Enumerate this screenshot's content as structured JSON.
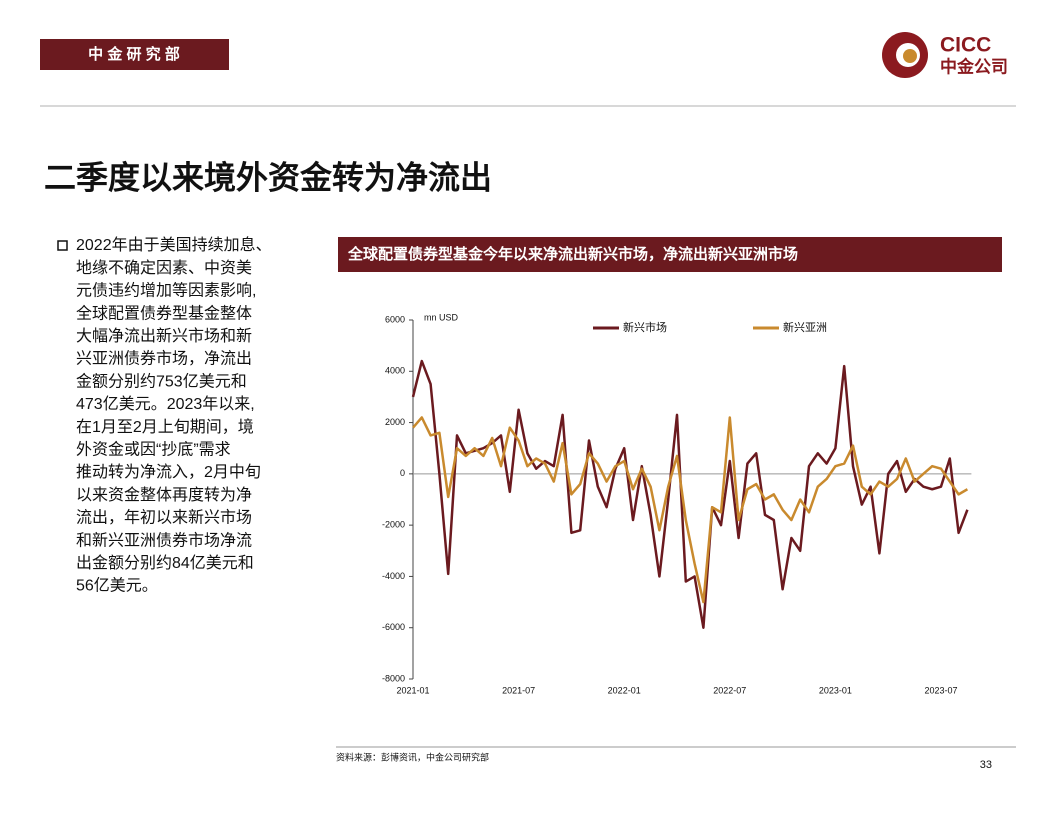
{
  "header": {
    "department": "中 金 研 究 部",
    "logo_en": "CICC",
    "logo_cn": "中金公司"
  },
  "slide_title": "二季度以来境外资金转为净流出",
  "bullet": [
    "2022年由于美国持续加息、",
    "地缘不确定因素、中资美",
    "元债违约增加等因素影响,",
    "全球配置债券型基金整体",
    "大幅净流出新兴市场和新",
    "兴亚洲债券市场，净流出",
    "金额分别约753亿美元和",
    "473亿美元。2023年以来,",
    "在1月至2月上旬期间，境",
    "外资金或因“抄底”需求",
    "推动转为净流入，2月中旬",
    "以来资金整体再度转为净",
    "流出，年初以来新兴市场",
    "和新兴亚洲债券市场净流",
    "出金额分别约84亿美元和",
    "56亿美元。"
  ],
  "source": "资料来源：彭博资讯，中金公司研究部",
  "page_number": "33",
  "chart_data": {
    "type": "line",
    "title": "全球配置债券型基金今年以来净流出新兴市场，净流出新兴亚洲市场",
    "y_label": "mn USD",
    "categories": [
      "2021-01",
      null,
      null,
      null,
      null,
      null,
      null,
      null,
      null,
      null,
      null,
      null,
      "2021-07",
      null,
      null,
      null,
      null,
      null,
      null,
      null,
      null,
      null,
      null,
      null,
      "2022-01",
      null,
      null,
      null,
      null,
      null,
      null,
      null,
      null,
      null,
      null,
      null,
      "2022-07",
      null,
      null,
      null,
      null,
      null,
      null,
      null,
      null,
      null,
      null,
      null,
      "2023-01",
      null,
      null,
      null,
      null,
      null,
      null,
      null,
      null,
      null,
      null,
      null,
      "2023-07",
      null,
      null,
      null
    ],
    "series": [
      {
        "name": "新兴市场",
        "color": "#6b1a1f",
        "values": [
          3000,
          4400,
          3500,
          0,
          -3900,
          1500,
          800,
          900,
          1000,
          1200,
          1500,
          -700,
          2500,
          800,
          200,
          500,
          300,
          2300,
          -2300,
          -2200,
          1300,
          -500,
          -1300,
          200,
          1000,
          -1800,
          300,
          -1600,
          -4000,
          -1000,
          2300,
          -4200,
          -4000,
          -6000,
          -1300,
          -2000,
          500,
          -2500,
          400,
          800,
          -1600,
          -1800,
          -4500,
          -2500,
          -3000,
          300,
          800,
          400,
          1000,
          4200,
          300,
          -1200,
          -500,
          -3100,
          0,
          500,
          -700,
          -200,
          -500,
          -600,
          -500,
          600,
          -2300,
          -1400
        ]
      },
      {
        "name": "新兴亚洲",
        "color": "#c98a2e",
        "values": [
          1800,
          2200,
          1500,
          1600,
          -900,
          1000,
          700,
          1000,
          700,
          1400,
          300,
          1800,
          1300,
          300,
          600,
          400,
          -300,
          1200,
          -800,
          -400,
          800,
          400,
          -300,
          300,
          500,
          -600,
          200,
          -500,
          -2200,
          -500,
          700,
          -1800,
          -3500,
          -5000,
          -1300,
          -1500,
          2200,
          -1800,
          -600,
          -400,
          -1000,
          -800,
          -1400,
          -1800,
          -1000,
          -1500,
          -500,
          -200,
          300,
          400,
          1100,
          -500,
          -800,
          -300,
          -500,
          -200,
          600,
          -300,
          0,
          300,
          200,
          -300,
          -800,
          -600
        ]
      }
    ],
    "ylim": [
      -8000,
      6000
    ],
    "yticks": [
      -8000,
      -6000,
      -4000,
      -2000,
      0,
      2000,
      4000,
      6000
    ],
    "grid": false
  }
}
